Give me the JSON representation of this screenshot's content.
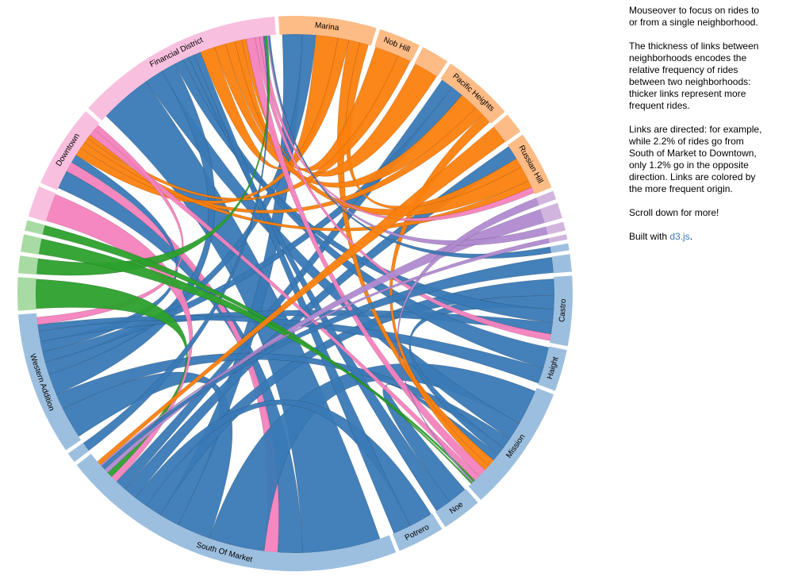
{
  "sidebar": {
    "intro": "Mouseover to focus on rides to or from a single neighborhood.",
    "thickness": "The thickness of links between neighborhoods encodes the relative frequency of rides between two neighborhoods: thicker links represent more frequent rides.",
    "directed": "Links are directed: for example, while 2.2% of rides go from South of Market to Downtown, only 1.2% go in the opposite direction. Links are colored by the more frequent origin.",
    "scroll": "Scroll down for more!",
    "built_prefix": "Built with ",
    "built_link": "d3.js",
    "built_suffix": "."
  },
  "colors": {
    "blue": "#3a79b5",
    "blue_light": "#9dbfdf",
    "orange": "#fb7f0d",
    "orange_light": "#fdbb85",
    "pink": "#f482bd",
    "pink_light": "#f8bfdf",
    "purple": "#b08ad0",
    "purple_light": "#d2b5de",
    "green": "#2ca02c",
    "green_light": "#a8dba3",
    "gray": "#7f7f7f"
  },
  "chart_data": {
    "type": "chord",
    "groups": [
      {
        "name": "Marina",
        "color": "orange",
        "share": 5.6
      },
      {
        "name": "Nob Hill",
        "color": "orange",
        "share": 2.4
      },
      {
        "name": "",
        "color": "orange",
        "share": 1.6
      },
      {
        "name": "Pacific Heights",
        "color": "orange",
        "share": 4.1
      },
      {
        "name": "",
        "color": "orange",
        "share": 1.2
      },
      {
        "name": "Russian Hill",
        "color": "orange",
        "share": 3.4
      },
      {
        "name": "",
        "color": "purple",
        "share": 0.5
      },
      {
        "name": "",
        "color": "purple",
        "share": 0.9
      },
      {
        "name": "",
        "color": "purple",
        "share": 0.5
      },
      {
        "name": "",
        "color": "purple",
        "share": 0.3
      },
      {
        "name": "",
        "color": "blue",
        "share": 0.4
      },
      {
        "name": "",
        "color": "blue",
        "share": 1.0
      },
      {
        "name": "Castro",
        "color": "blue",
        "share": 4.0
      },
      {
        "name": "Haight",
        "color": "blue",
        "share": 2.4
      },
      {
        "name": "Mission",
        "color": "blue",
        "share": 7.3
      },
      {
        "name": "Noe",
        "color": "blue",
        "share": 2.3
      },
      {
        "name": "Potrero",
        "color": "blue",
        "share": 2.7
      },
      {
        "name": "South Of Market",
        "color": "blue",
        "share": 20.0
      },
      {
        "name": "",
        "color": "blue",
        "share": 0.6
      },
      {
        "name": "Western Addition",
        "color": "blue",
        "share": 8.2
      },
      {
        "name": "",
        "color": "green",
        "share": 1.9
      },
      {
        "name": "",
        "color": "green",
        "share": 1.0
      },
      {
        "name": "",
        "color": "green",
        "share": 1.0
      },
      {
        "name": "",
        "color": "green",
        "share": 0.6
      },
      {
        "name": "",
        "color": "pink",
        "share": 1.8
      },
      {
        "name": "Downtown",
        "color": "pink",
        "share": 4.8
      },
      {
        "name": "Financial District",
        "color": "pink",
        "share": 12.0
      }
    ],
    "links": [
      {
        "source": 17,
        "target": 26,
        "value": 7
      },
      {
        "source": 17,
        "target": 25,
        "value": 2.2
      },
      {
        "source": 25,
        "target": 17,
        "value": 1.2
      },
      {
        "source": 17,
        "target": 14,
        "value": 5
      },
      {
        "source": 17,
        "target": 19,
        "value": 3
      },
      {
        "source": 17,
        "target": 0,
        "value": 1.8
      },
      {
        "source": 17,
        "target": 12,
        "value": 1.5
      },
      {
        "source": 17,
        "target": 16,
        "value": 1.2
      },
      {
        "source": 17,
        "target": 5,
        "value": 1.2
      },
      {
        "source": 17,
        "target": 3,
        "value": 1.0
      },
      {
        "source": 14,
        "target": 26,
        "value": 2.5
      },
      {
        "source": 14,
        "target": 19,
        "value": 1.5
      },
      {
        "source": 14,
        "target": 12,
        "value": 1.2
      },
      {
        "source": 14,
        "target": 15,
        "value": 1.0
      },
      {
        "source": 19,
        "target": 26,
        "value": 2.0
      },
      {
        "source": 19,
        "target": 0,
        "value": 1.2
      },
      {
        "source": 19,
        "target": 3,
        "value": 1.0
      },
      {
        "source": 19,
        "target": 25,
        "value": 1.0
      },
      {
        "source": 12,
        "target": 26,
        "value": 1.2
      },
      {
        "source": 12,
        "target": 19,
        "value": 1.0
      },
      {
        "source": 13,
        "target": 26,
        "value": 0.8
      },
      {
        "source": 13,
        "target": 19,
        "value": 0.6
      },
      {
        "source": 15,
        "target": 26,
        "value": 0.8
      },
      {
        "source": 16,
        "target": 26,
        "value": 0.9
      },
      {
        "source": 0,
        "target": 26,
        "value": 2.0
      },
      {
        "source": 0,
        "target": 25,
        "value": 1.0
      },
      {
        "source": 0,
        "target": 14,
        "value": 1.0
      },
      {
        "source": 0,
        "target": 5,
        "value": 0.8
      },
      {
        "source": 3,
        "target": 26,
        "value": 1.5
      },
      {
        "source": 3,
        "target": 25,
        "value": 0.8
      },
      {
        "source": 3,
        "target": 14,
        "value": 0.8
      },
      {
        "source": 5,
        "target": 26,
        "value": 1.3
      },
      {
        "source": 5,
        "target": 25,
        "value": 0.6
      },
      {
        "source": 1,
        "target": 26,
        "value": 0.9
      },
      {
        "source": 1,
        "target": 25,
        "value": 0.5
      },
      {
        "source": 2,
        "target": 26,
        "value": 0.6
      },
      {
        "source": 26,
        "target": 14,
        "value": 1.2
      },
      {
        "source": 26,
        "target": 12,
        "value": 0.6
      },
      {
        "source": 26,
        "target": 5,
        "value": 0.5
      },
      {
        "source": 25,
        "target": 14,
        "value": 0.8
      },
      {
        "source": 25,
        "target": 19,
        "value": 0.7
      },
      {
        "source": 24,
        "target": 17,
        "value": 0.6
      },
      {
        "source": 20,
        "target": 17,
        "value": 0.5
      },
      {
        "source": 7,
        "target": 17,
        "value": 0.4
      },
      {
        "source": 11,
        "target": 17,
        "value": 0.4
      },
      {
        "source": 18,
        "target": 26,
        "value": 0.2
      },
      {
        "source": 21,
        "target": 26,
        "value": 0.3
      },
      {
        "source": 22,
        "target": 14,
        "value": 0.3
      },
      {
        "source": 8,
        "target": 26,
        "value": 0.2
      },
      {
        "source": 6,
        "target": 14,
        "value": 0.2
      },
      {
        "source": 10,
        "target": 26,
        "value": 0.2
      },
      {
        "source": 9,
        "target": 17,
        "value": 0.15
      },
      {
        "source": 23,
        "target": 14,
        "value": 0.2
      },
      {
        "source": 4,
        "target": 17,
        "value": 0.4
      }
    ]
  }
}
